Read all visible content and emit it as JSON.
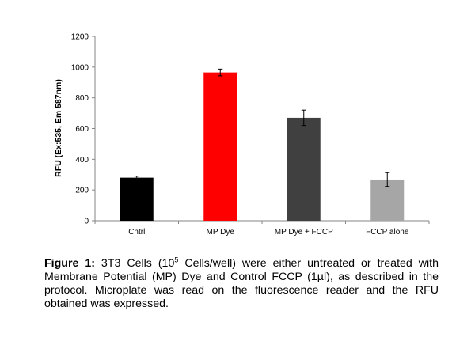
{
  "chart_data": {
    "type": "bar",
    "categories": [
      "Cntrl",
      "MP Dye",
      "MP Dye + FCCP",
      "FCCP alone"
    ],
    "values": [
      280,
      965,
      670,
      268
    ],
    "errors": [
      10,
      22,
      50,
      45
    ],
    "colors": [
      "#000000",
      "#ff0000",
      "#404040",
      "#a6a6a6"
    ],
    "ylabel": "RFU (Ex:535, Em 587nm)",
    "xlabel": "",
    "ylim": [
      0,
      1200
    ],
    "yticks": [
      0,
      200,
      400,
      600,
      800,
      1000,
      1200
    ],
    "grid": false
  },
  "caption": {
    "label": "Figure 1:",
    "text_before_sup": " 3T3 Cells (10",
    "sup": "5",
    "text_after_sup": " Cells/well) were either untreated or treated with Membrane Potential (MP) Dye and Control FCCP (1µl), as described in the protocol. Microplate was read on the fluorescence reader and the RFU obtained was expressed."
  }
}
